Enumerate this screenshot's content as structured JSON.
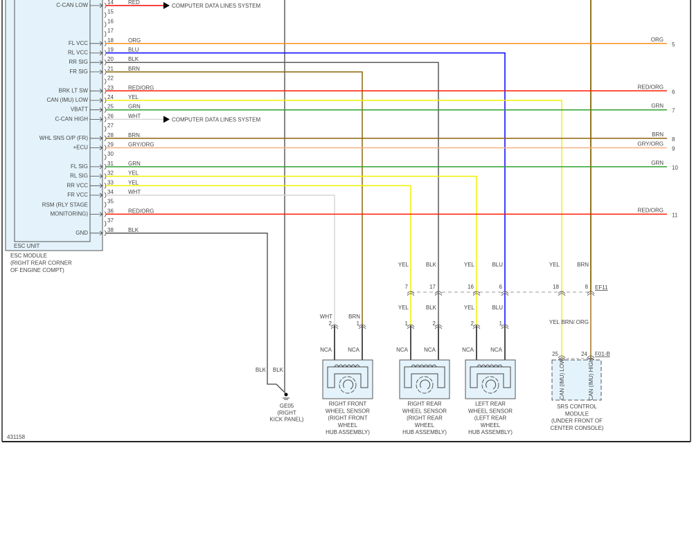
{
  "diagram_id": "431158",
  "esc_module": {
    "unit_label": "ESC UNIT",
    "name_lines": [
      "ESC MODULE",
      "(RIGHT REAR CORNER",
      "OF ENGINE COMPT)"
    ]
  },
  "pins": [
    {
      "pin": "14",
      "signal": [
        "C-CAN LOW"
      ],
      "wire": "RED",
      "color": "#ff0000",
      "dest": "COMPUTER DATA LINES SYSTEM"
    },
    {
      "pin": "15"
    },
    {
      "pin": "16"
    },
    {
      "pin": "17"
    },
    {
      "pin": "18",
      "signal": [
        "FL VCC"
      ],
      "wire": "ORG",
      "color": "#ff8c1a",
      "right_pin": "5"
    },
    {
      "pin": "19",
      "signal": [
        "RL VCC"
      ],
      "wire": "BLU",
      "color": "#0000ff"
    },
    {
      "pin": "20",
      "signal": [
        "RR SIG"
      ],
      "wire": "BLK",
      "color": "#5a5a5a"
    },
    {
      "pin": "21",
      "signal": [
        "FR SIG"
      ],
      "wire": "BRN",
      "color": "#8b6508"
    },
    {
      "pin": "22"
    },
    {
      "pin": "23",
      "signal": [
        "BRK LT SW"
      ],
      "wire": "RED/ORG",
      "color": "#ff1a00",
      "right_pin": "6"
    },
    {
      "pin": "24",
      "signal": [
        "CAN (IMU) LOW"
      ],
      "wire": "YEL",
      "color": "#f2f000"
    },
    {
      "pin": "25",
      "signal": [
        "VBATT"
      ],
      "wire": "GRN",
      "color": "#2ca02c",
      "right_pin": "7"
    },
    {
      "pin": "26",
      "signal": [
        "C-CAN HIGH"
      ],
      "wire": "WHT",
      "color": "#d6d6d6",
      "dest": "COMPUTER DATA LINES SYSTEM"
    },
    {
      "pin": "27"
    },
    {
      "pin": "28",
      "signal": [
        "WHL SNS O/P (FR)"
      ],
      "wire": "BRN",
      "color": "#8b6508",
      "right_pin": "8"
    },
    {
      "pin": "29",
      "signal": [
        "+ECU"
      ],
      "wire": "GRY/ORG",
      "color": "#f4b183",
      "right_pin": "9"
    },
    {
      "pin": "30"
    },
    {
      "pin": "31",
      "signal": [
        "FL SIG"
      ],
      "wire": "GRN",
      "color": "#2ca02c",
      "right_pin": "10"
    },
    {
      "pin": "32",
      "signal": [
        "RL SIG"
      ],
      "wire": "YEL",
      "color": "#f2f000"
    },
    {
      "pin": "33",
      "signal": [
        "RR VCC"
      ],
      "wire": "YEL",
      "color": "#f2f000"
    },
    {
      "pin": "34",
      "signal": [
        "FR VCC"
      ],
      "wire": "WHT",
      "color": "#d6d6d6"
    },
    {
      "pin": "35"
    },
    {
      "pin": "36",
      "signal": [
        "RSM (RLY STAGE",
        "MONITORING)"
      ],
      "wire": "RED/ORG",
      "color": "#ff1a00",
      "right_pin": "11"
    },
    {
      "pin": "37"
    },
    {
      "pin": "38",
      "signal": [
        "GND"
      ],
      "wire": "BLK",
      "color": "#5a5a5a"
    }
  ],
  "inline_connector": {
    "label": "EF11",
    "pins": [
      {
        "num": "7",
        "above": "YEL",
        "below": "YEL"
      },
      {
        "num": "17",
        "above": "BLK",
        "below": "BLK"
      },
      {
        "num": "16",
        "above": "YEL",
        "below": "YEL"
      },
      {
        "num": "6",
        "above": "BLU",
        "below": "BLU"
      },
      {
        "num": "18",
        "above": "YEL",
        "below": "YEL"
      },
      {
        "num": "8",
        "above": "BRN",
        "below": "BRN/ ORG"
      }
    ]
  },
  "sensors": [
    {
      "name_lines": [
        "RIGHT FRONT",
        "WHEEL SENSOR",
        "(RIGHT FRONT",
        "WHEEL",
        "HUB ASSEMBLY)"
      ],
      "pins": [
        {
          "num": "2",
          "wire": "WHT",
          "lead": "NCA"
        },
        {
          "num": "1",
          "wire": "BRN",
          "lead": "NCA"
        }
      ]
    },
    {
      "name_lines": [
        "RIGHT REAR",
        "WHEEL SENSOR",
        "(RIGHT REAR",
        "WHEEL",
        "HUB ASSEMBLY)"
      ],
      "pins": [
        {
          "num": "1",
          "wire": "",
          "lead": "NCA"
        },
        {
          "num": "2",
          "wire": "",
          "lead": "NCA"
        }
      ]
    },
    {
      "name_lines": [
        "LEFT REAR",
        "WHEEL SENSOR",
        "(LEFT REAR",
        "WHEEL",
        "HUB ASSEMBLY)"
      ],
      "pins": [
        {
          "num": "2",
          "wire": "",
          "lead": "NCA"
        },
        {
          "num": "1",
          "wire": "",
          "lead": "NCA"
        }
      ]
    }
  ],
  "srs_module": {
    "connector": "F01-B",
    "pins": [
      {
        "num": "25",
        "signal": "CAN (IMU) LOW"
      },
      {
        "num": "24",
        "signal": "CAN (IMU) HIGH"
      }
    ],
    "name_lines": [
      "SRS CONTROL",
      "MODULE",
      "(UNDER FRONT OF",
      "CENTER CONSOLE)"
    ]
  },
  "ground": {
    "wire_labels": [
      "BLK",
      "BLK"
    ],
    "name_lines": [
      "GE05",
      "(RIGHT",
      "KICK PANEL)"
    ]
  }
}
